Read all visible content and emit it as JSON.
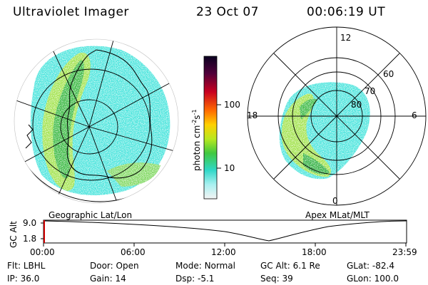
{
  "header": {
    "title": "Ultraviolet Imager",
    "date": "23 Oct 07",
    "time": "00:06:19 UT"
  },
  "colorbar": {
    "label": "photon cm",
    "label_exp1": "-2",
    "label_mid": "s",
    "label_exp2": "-1",
    "ticks": [
      "100",
      "10"
    ]
  },
  "geo_panel": {
    "label": "Geographic Lat/Lon"
  },
  "polar_panel": {
    "label": "Apex MLat/MLT",
    "mlt_labels": [
      "12",
      "18",
      "6",
      "0"
    ],
    "lat_labels": [
      "60",
      "70",
      "80"
    ]
  },
  "altitude_plot": {
    "ylabel": "GC Alt",
    "y_ticks": [
      "9.0",
      "1.8"
    ],
    "x_ticks": [
      "00:00",
      "06:00",
      "12:00",
      "18:00",
      "23:59"
    ],
    "cursor_color": "#cc0000"
  },
  "info": {
    "row1": [
      {
        "label": "Flt:",
        "value": "LBHL"
      },
      {
        "label": "Door:",
        "value": "Open"
      },
      {
        "label": "Mode:",
        "value": "Normal"
      },
      {
        "label": "GC Alt:",
        "value": "6.1 Re"
      },
      {
        "label": "GLat:",
        "value": "-82.4"
      }
    ],
    "row2": [
      {
        "label": "IP:",
        "value": "36.0"
      },
      {
        "label": "Gain:",
        "value": "14"
      },
      {
        "label": "Dsp:",
        "value": "-5.1"
      },
      {
        "label": "Seq:",
        "value": "39"
      },
      {
        "label": "GLon:",
        "value": "100.0"
      }
    ]
  },
  "colors": {
    "aurora_edge": "#40e0e0",
    "aurora_mid": "#7fdf3f",
    "aurora_core": "#2fa83a",
    "background": "#ffffff"
  }
}
